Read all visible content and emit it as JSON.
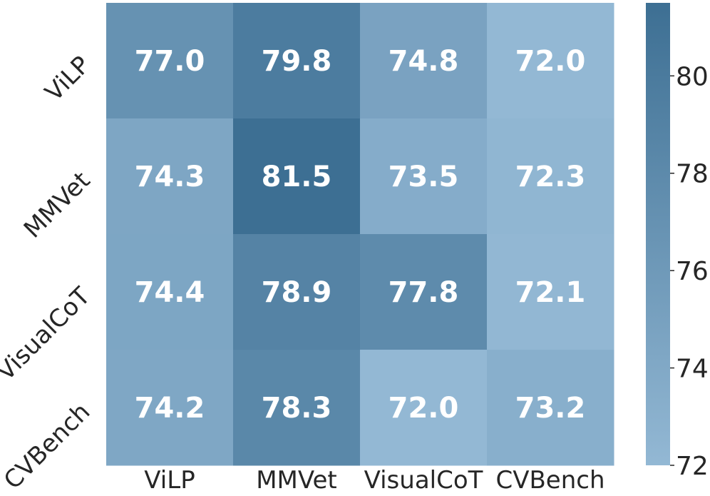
{
  "chart_data": {
    "type": "heatmap",
    "title": "",
    "xlabel": "",
    "ylabel": "",
    "x_categories": [
      "ViLP",
      "MMVet",
      "VisualCoT",
      "CVBench"
    ],
    "y_categories": [
      "ViLP",
      "MMVet",
      "VisualCoT",
      "CVBench"
    ],
    "values": [
      [
        77.0,
        79.8,
        74.8,
        72.0
      ],
      [
        74.3,
        81.5,
        73.5,
        72.3
      ],
      [
        74.4,
        78.9,
        77.8,
        72.1
      ],
      [
        74.2,
        78.3,
        72.0,
        73.2
      ]
    ],
    "cell_labels": [
      [
        "77.0",
        "79.8",
        "74.8",
        "72.0"
      ],
      [
        "74.3",
        "81.5",
        "73.5",
        "72.3"
      ],
      [
        "74.4",
        "78.9",
        "77.8",
        "72.1"
      ],
      [
        "74.2",
        "78.3",
        "72.0",
        "73.2"
      ]
    ],
    "colorbar": {
      "range": [
        72.0,
        81.5
      ],
      "ticks": [
        72,
        74,
        76,
        78,
        80
      ],
      "tick_labels": [
        "72",
        "74",
        "76",
        "78",
        "80"
      ],
      "color_low": "#93b8d4",
      "color_high": "#3d6f93"
    },
    "grid": false,
    "legend": "right"
  }
}
